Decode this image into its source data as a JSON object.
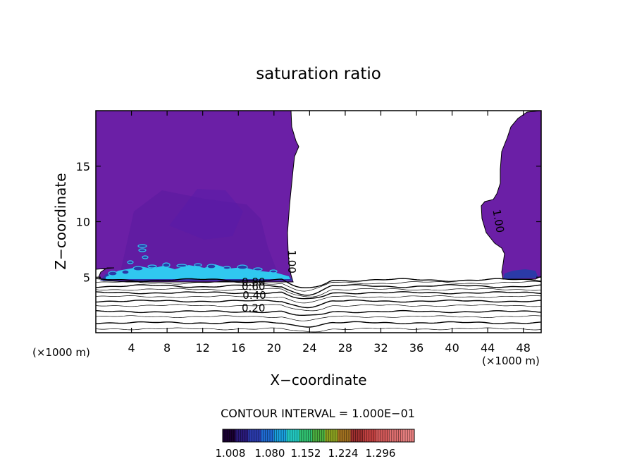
{
  "chart_data": {
    "type": "heatmap",
    "title": "saturation ratio",
    "xlabel": "X−coordinate",
    "ylabel": "Z−coordinate",
    "x_unit": "(×1000 m)",
    "y_unit": "(×1000 m)",
    "xlim": [
      0,
      50
    ],
    "ylim": [
      0,
      20
    ],
    "xticks": [
      4,
      8,
      12,
      16,
      20,
      24,
      28,
      32,
      36,
      40,
      44,
      48
    ],
    "yticks": [
      5,
      10,
      15
    ],
    "contour_interval_text": "CONTOUR INTERVAL = 1.000E−01",
    "contour_labels": [
      {
        "text": "1.00",
        "x": 21.6,
        "y": 6.4,
        "rotation": 90
      },
      {
        "text": "1.00",
        "x": 44.8,
        "y": 10.0,
        "rotation": 80
      },
      {
        "text": "0.80",
        "x": 17.7,
        "y": 4.25
      },
      {
        "text": "0.60",
        "x": 17.7,
        "y": 3.85
      },
      {
        "text": "0.40",
        "x": 17.8,
        "y": 3.05
      },
      {
        "text": "0.20",
        "x": 17.7,
        "y": 1.9
      }
    ],
    "isolines_y": [
      0.35,
      0.9,
      1.45,
      1.9,
      2.45,
      2.85,
      3.25,
      3.6,
      3.9,
      4.2,
      4.5,
      4.75
    ],
    "colorbar": {
      "ticks": [
        "1.008",
        "1.080",
        "1.152",
        "1.224",
        "1.296"
      ],
      "colors": [
        "#1a0033",
        "#2a1a7a",
        "#2a3aaa",
        "#1f6ad2",
        "#1aa0e0",
        "#22c8c0",
        "#30c070",
        "#4cb040",
        "#8aa020",
        "#a07020",
        "#a03030",
        "#c04040",
        "#d05858",
        "#e07070",
        "#e88080"
      ]
    },
    "fill_color": "#6b1fa6",
    "fill_color_dark": "#4a1a9a",
    "high_color": "#30c8f0"
  }
}
